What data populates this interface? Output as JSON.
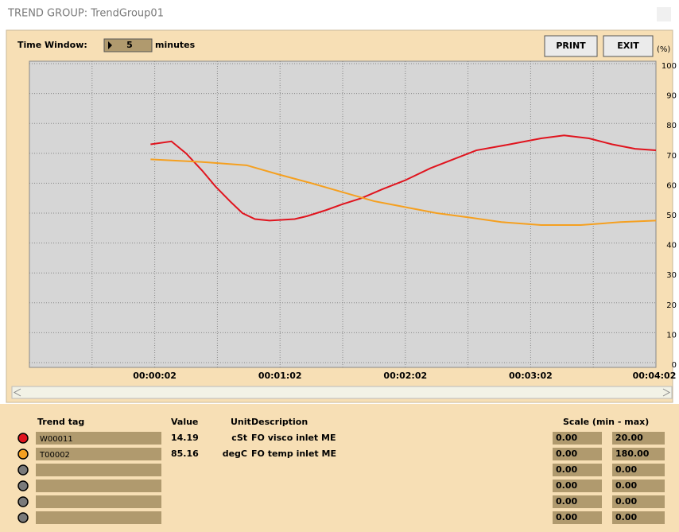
{
  "window_title": "TREND GROUP: TrendGroup01",
  "toolbar": {
    "time_window_label": "Time Window:",
    "time_window_value": "5",
    "time_window_unit": "minutes",
    "buttons": [
      "PRINT",
      "EXIT"
    ]
  },
  "chart_data": {
    "type": "line",
    "y_unit_label": "(%)",
    "xlim": [
      -58,
      242
    ],
    "xticks": [
      {
        "value": 2,
        "label": "00:00:02"
      },
      {
        "value": 62,
        "label": "00:01:02"
      },
      {
        "value": 122,
        "label": "00:02:02"
      },
      {
        "value": 182,
        "label": "00:03:02"
      },
      {
        "value": 242,
        "label": "00:04:02"
      }
    ],
    "xminor": [
      -28,
      32,
      92,
      152,
      212
    ],
    "ylim": [
      0,
      100
    ],
    "yticks": [
      0,
      10,
      20,
      30,
      40,
      50,
      60,
      70,
      80,
      90,
      100
    ],
    "grid": true,
    "series": [
      {
        "color": "#e0141e",
        "x": [
          0,
          10,
          17,
          25,
          31,
          38,
          44,
          50,
          57,
          69,
          75,
          84,
          92,
          101,
          111,
          122,
          134,
          145,
          156,
          172,
          187,
          198,
          210,
          221,
          232,
          242
        ],
        "values": [
          73,
          74,
          70,
          64,
          59,
          54,
          50,
          48,
          47.5,
          48,
          49,
          51,
          53,
          55,
          58,
          61,
          65,
          68,
          71,
          73,
          75,
          76,
          75,
          73,
          71.5,
          71
        ]
      },
      {
        "color": "#f5a020",
        "x": [
          0,
          27,
          46,
          61,
          77,
          92,
          107,
          122,
          137,
          153,
          168,
          187,
          206,
          225,
          242
        ],
        "values": [
          68,
          67,
          66,
          63,
          60,
          57,
          54,
          52,
          50,
          48.5,
          47,
          46,
          46,
          47,
          47.5
        ]
      }
    ]
  },
  "table": {
    "headers": [
      "Trend tag",
      "Value",
      "Unit",
      "Description",
      "Scale (min - max)"
    ],
    "rows": [
      {
        "color": "#e0141e",
        "tag": "W00011",
        "value": "14.19",
        "unit": "cSt",
        "description": "FO visco inlet ME",
        "min": "0.00",
        "max": "20.00"
      },
      {
        "color": "#f5a020",
        "tag": "T00002",
        "value": "85.16",
        "unit": "degC",
        "description": "FO temp  inlet ME",
        "min": "0.00",
        "max": "180.00"
      },
      {
        "color": "#7a7a7a",
        "min": "0.00",
        "max": "0.00"
      },
      {
        "color": "#7a7a7a",
        "min": "0.00",
        "max": "0.00"
      },
      {
        "color": "#7a7a7a",
        "min": "0.00",
        "max": "0.00"
      },
      {
        "color": "#7a7a7a",
        "min": "0.00",
        "max": "0.00"
      }
    ]
  }
}
